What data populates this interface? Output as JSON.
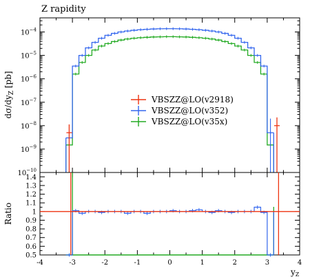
{
  "chart_data": [
    {
      "type": "line",
      "title": "Z rapidity",
      "ylabel": "dσ/dy_Z [pb]",
      "ylabel_parts": {
        "main": "dσ/dy",
        "sub": "Z",
        "unit": " [pb]"
      },
      "xlabel": "y_Z",
      "y_log": true,
      "ylim": [
        1e-10,
        0.0004
      ],
      "xlim": [
        -4,
        4
      ],
      "y_tick_labels": [
        {
          "base": "10",
          "exp": "−4"
        },
        {
          "base": "10",
          "exp": "−5"
        },
        {
          "base": "10",
          "exp": "−6"
        },
        {
          "base": "10",
          "exp": "−7"
        },
        {
          "base": "10",
          "exp": "−8"
        },
        {
          "base": "10",
          "exp": "−9"
        },
        {
          "base": "10",
          "exp": "−10"
        }
      ],
      "legend_position": "center",
      "series": [
        {
          "name": "VBSZZ@LO(v2918)",
          "color": "#ee3311",
          "points": [
            {
              "x": -3.1,
              "y": 5e-09
            },
            {
              "x": 3.3,
              "y": 1e-08
            }
          ]
        },
        {
          "name": "VBSZZ@LO(v352)",
          "color": "#3366ee",
          "bins": [
            -3.2,
            -3.0,
            -2.8,
            -2.6,
            -2.4,
            -2.2,
            -2.0,
            -1.8,
            -1.6,
            -1.4,
            -1.2,
            -1.0,
            -0.8,
            -0.6,
            -0.4,
            -0.2,
            0.0,
            0.2,
            0.4,
            0.6,
            0.8,
            1.0,
            1.2,
            1.4,
            1.6,
            1.8,
            2.0,
            2.2,
            2.4,
            2.6,
            2.8,
            3.0,
            3.2
          ],
          "values": [
            3e-09,
            3.5e-06,
            1e-05,
            2.1e-05,
            3.6e-05,
            5.4e-05,
            7.2e-05,
            8.7e-05,
            0.0001,
            0.00011,
            0.000118,
            0.000125,
            0.00013,
            0.000134,
            0.000137,
            0.000138,
            0.000138,
            0.000137,
            0.000134,
            0.00013,
            0.000125,
            0.000118,
            0.00011,
            0.0001,
            8.7e-05,
            7.2e-05,
            5.4e-05,
            3.6e-05,
            2.1e-05,
            1e-05,
            3.5e-06,
            5e-09
          ]
        },
        {
          "name": "VBSZZ@LO(v35x)",
          "color": "#22aa22",
          "bins": [
            -3.2,
            -3.0,
            -2.8,
            -2.6,
            -2.4,
            -2.2,
            -2.0,
            -1.8,
            -1.6,
            -1.4,
            -1.2,
            -1.0,
            -0.8,
            -0.6,
            -0.4,
            -0.2,
            0.0,
            0.2,
            0.4,
            0.6,
            0.8,
            1.0,
            1.2,
            1.4,
            1.6,
            1.8,
            2.0,
            2.2,
            2.4,
            2.6,
            2.8,
            3.0,
            3.2
          ],
          "values": [
            1.5e-09,
            1.6e-06,
            5e-06,
            1e-05,
            1.7e-05,
            2.5e-05,
            3.2e-05,
            3.9e-05,
            4.5e-05,
            5e-05,
            5.4e-05,
            5.7e-05,
            5.9e-05,
            6.1e-05,
            6.2e-05,
            6.3e-05,
            6.3e-05,
            6.2e-05,
            6.1e-05,
            5.9e-05,
            5.7e-05,
            5.4e-05,
            5e-05,
            4.5e-05,
            3.9e-05,
            3.2e-05,
            2.5e-05,
            1.7e-05,
            1e-05,
            5e-06,
            1.6e-06,
            1.5e-09
          ]
        }
      ]
    },
    {
      "type": "line",
      "title": "",
      "ylabel": "Ratio",
      "xlabel": "y_Z",
      "xlabel_parts": {
        "main": "y",
        "sub": "Z"
      },
      "xlim": [
        -4,
        4
      ],
      "ylim": [
        0.5,
        1.45
      ],
      "x_tick_labels": [
        "-4",
        "-3",
        "-2",
        "-1",
        "0",
        "1",
        "2",
        "3",
        "4"
      ],
      "y_tick_labels": [
        "0.5",
        "0.6",
        "0.7",
        "0.8",
        "0.9",
        "1",
        "1.1",
        "1.2",
        "1.3",
        "1.4"
      ],
      "series": [
        {
          "name": "VBSZZ@LO(v2918)",
          "color": "#ee3311",
          "x": [
            -3.0,
            3.0
          ],
          "values": [
            1.0,
            1.0
          ]
        },
        {
          "name": "VBSZZ@LO(v352)",
          "color": "#3366ee",
          "bins": [
            -3.2,
            -3.0,
            -2.8,
            -2.6,
            -2.4,
            -2.2,
            -2.0,
            -1.8,
            -1.6,
            -1.4,
            -1.2,
            -1.0,
            -0.8,
            -0.6,
            -0.4,
            -0.2,
            0.0,
            0.2,
            0.4,
            0.6,
            0.8,
            1.0,
            1.2,
            1.4,
            1.6,
            1.8,
            2.0,
            2.2,
            2.4,
            2.6,
            2.8,
            3.0,
            3.2
          ],
          "values": [
            0.4,
            1.01,
            0.98,
            1.0,
            1.0,
            0.99,
            1.0,
            1.0,
            1.0,
            0.98,
            1.0,
            1.0,
            0.98,
            1.0,
            1.0,
            1.0,
            1.01,
            1.0,
            1.0,
            1.01,
            1.02,
            1.0,
            0.99,
            1.01,
            1.0,
            0.99,
            1.0,
            1.0,
            1.0,
            1.05,
            0.99,
            0.4
          ]
        },
        {
          "name": "VBSZZ@LO(v35x)",
          "color": "#22aa22",
          "bins": [
            -3.2,
            -3.0,
            -2.8,
            -2.6,
            -2.4,
            -2.2,
            -2.0,
            -1.8,
            -1.6,
            -1.4,
            -1.2,
            -1.0,
            -0.8,
            -0.6,
            -0.4,
            -0.2,
            0.0,
            0.2,
            0.4,
            0.6,
            0.8,
            1.0,
            1.2,
            1.4,
            1.6,
            1.8,
            2.0,
            2.2,
            2.4,
            2.6,
            2.8,
            3.0,
            3.2
          ],
          "values": [
            0.4,
            0.46,
            0.46,
            0.46,
            0.46,
            0.46,
            0.46,
            0.46,
            0.46,
            0.46,
            0.46,
            0.46,
            0.46,
            0.46,
            0.46,
            0.46,
            0.46,
            0.46,
            0.46,
            0.46,
            0.46,
            0.46,
            0.46,
            0.46,
            0.46,
            0.46,
            0.46,
            0.46,
            0.46,
            0.46,
            0.46,
            0.4
          ]
        }
      ]
    }
  ]
}
